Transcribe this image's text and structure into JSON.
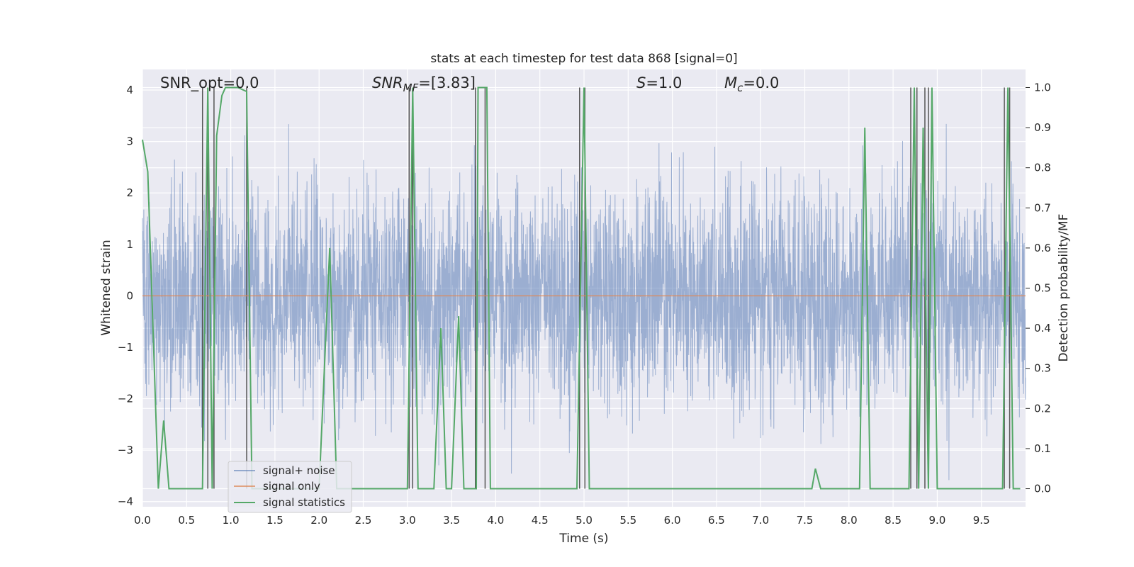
{
  "chart_data": {
    "type": "line",
    "title": "stats at each timestep for test data 868 [signal=0]",
    "xlabel": "Time (s)",
    "ylabel": "Whitened strain",
    "y2label": "Detection probability/MF",
    "xlim": [
      0.0,
      10.0
    ],
    "ylim": [
      -4.1,
      4.4
    ],
    "y2lim": [
      -0.045,
      1.045
    ],
    "grid": true,
    "legend_placement": "lower-left",
    "x_ticks": [
      "0.0",
      "0.5",
      "1.0",
      "1.5",
      "2.0",
      "2.5",
      "3.0",
      "3.5",
      "4.0",
      "4.5",
      "5.0",
      "5.5",
      "6.0",
      "6.5",
      "7.0",
      "7.5",
      "8.0",
      "8.5",
      "9.0",
      "9.5"
    ],
    "y_ticks": [
      "4",
      "3",
      "2",
      "1",
      "0",
      "−1",
      "−2",
      "−3",
      "−4"
    ],
    "y2_ticks": [
      "1.0",
      "0.9",
      "0.8",
      "0.7",
      "0.6",
      "0.5",
      "0.4",
      "0.3",
      "0.2",
      "0.1",
      "0.0"
    ],
    "annotations": {
      "snr_opt": "SNR_opt=0.0",
      "snr_mf_base": "SNR",
      "snr_mf_sub": "MF",
      "snr_mf_value": "=[3.83]",
      "s_base": "S",
      "s_value": "=1.0",
      "mc_base": "M",
      "mc_sub": "c",
      "mc_value": "=0.0"
    },
    "series": [
      {
        "name": "signal+ noise",
        "color": "#4c72b0",
        "description_values": "gaussian noise, sigma~1, range approx -3.8 to 3.7"
      },
      {
        "name": "signal only",
        "color": "#dd8452",
        "values_constant": 0.0
      },
      {
        "name": "signal statistics",
        "color": "#55a868",
        "points": [
          [
            0.0,
            0.87
          ],
          [
            0.06,
            0.79
          ],
          [
            0.18,
            0.0
          ],
          [
            0.24,
            0.17
          ],
          [
            0.3,
            0.0
          ],
          [
            0.68,
            0.0
          ],
          [
            0.74,
            1.0
          ],
          [
            0.79,
            0.0
          ],
          [
            0.84,
            0.88
          ],
          [
            0.9,
            0.98
          ],
          [
            0.94,
            1.0
          ],
          [
            1.08,
            1.0
          ],
          [
            1.18,
            0.99
          ],
          [
            1.24,
            0.0
          ],
          [
            2.0,
            0.0
          ],
          [
            2.12,
            0.6
          ],
          [
            2.2,
            0.0
          ],
          [
            3.0,
            0.0
          ],
          [
            3.06,
            1.0
          ],
          [
            3.12,
            0.0
          ],
          [
            3.3,
            0.0
          ],
          [
            3.38,
            0.4
          ],
          [
            3.44,
            0.0
          ],
          [
            3.5,
            0.0
          ],
          [
            3.58,
            0.43
          ],
          [
            3.64,
            0.0
          ],
          [
            3.78,
            0.0
          ],
          [
            3.8,
            1.0
          ],
          [
            3.9,
            1.0
          ],
          [
            3.94,
            0.0
          ],
          [
            4.92,
            0.0
          ],
          [
            5.0,
            1.0
          ],
          [
            5.06,
            0.0
          ],
          [
            7.34,
            0.0
          ],
          [
            7.58,
            0.0
          ],
          [
            7.62,
            0.05
          ],
          [
            7.68,
            0.0
          ],
          [
            8.12,
            0.0
          ],
          [
            8.18,
            0.9
          ],
          [
            8.24,
            0.0
          ],
          [
            8.68,
            0.0
          ],
          [
            8.74,
            1.0
          ],
          [
            8.79,
            0.0
          ],
          [
            8.84,
            0.9
          ],
          [
            8.9,
            0.0
          ],
          [
            8.94,
            1.0
          ],
          [
            9.0,
            0.0
          ],
          [
            9.74,
            0.0
          ],
          [
            9.8,
            1.0
          ],
          [
            9.86,
            0.0
          ],
          [
            9.94,
            0.0
          ]
        ]
      },
      {
        "name": "",
        "color": "#555555",
        "vertical_lines_x": [
          0.68,
          0.74,
          0.81,
          1.18,
          3.02,
          3.06,
          3.77,
          3.88,
          4.95,
          5.01,
          8.7,
          8.77,
          8.86,
          8.9,
          9.76,
          9.82
        ]
      }
    ]
  }
}
